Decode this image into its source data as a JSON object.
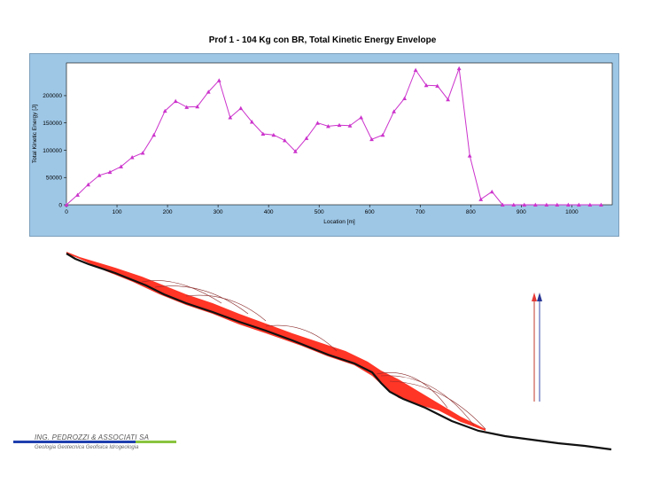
{
  "chart_data": {
    "type": "line",
    "title": "Prof  1 - 104 Kg con BR, Total Kinetic Energy Envelope",
    "xlabel": "Location [m]",
    "ylabel": "Total Kinetic Energy [J]",
    "xlim": [
      0,
      1080
    ],
    "ylim": [
      0,
      260000
    ],
    "xticks": [
      0,
      100,
      200,
      300,
      400,
      500,
      600,
      700,
      800,
      900,
      1000
    ],
    "yticks": [
      0,
      50000,
      100000,
      150000,
      200000
    ],
    "grid": false,
    "legend": "none",
    "series": [
      {
        "color": "#cc33cc",
        "x": [
          0,
          22,
          43,
          65,
          86,
          108,
          130,
          151,
          173,
          195,
          216,
          238,
          259,
          281,
          302,
          324,
          345,
          367,
          389,
          410,
          432,
          453,
          475,
          497,
          518,
          540,
          561,
          583,
          604,
          626,
          648,
          669,
          691,
          712,
          734,
          755,
          777,
          798,
          820,
          842,
          863,
          885,
          906,
          928,
          950,
          971,
          993,
          1014,
          1036,
          1058
        ],
        "y": [
          0,
          18000,
          37000,
          54000,
          60000,
          70000,
          87000,
          95000,
          128000,
          172000,
          190000,
          179000,
          180000,
          207000,
          228000,
          160000,
          177000,
          152000,
          130000,
          128000,
          118000,
          98000,
          122000,
          150000,
          144000,
          146000,
          145000,
          160000,
          120000,
          128000,
          171000,
          195000,
          247000,
          219000,
          218000,
          193000,
          250000,
          90000,
          10000,
          24000,
          0,
          0,
          0,
          0,
          0,
          0,
          0,
          0,
          0,
          0
        ]
      }
    ]
  },
  "logo": {
    "name": "ING. PEDROZZI & ASSOCIATI SA",
    "subtitle": "Geologia  Geotecnica  Geofisica  Idrogeologia"
  },
  "colors": {
    "panel_background": "#9ec7e6",
    "series_line": "#cc33cc",
    "trajectories": "#ff2a1a",
    "terrain": "#111111"
  }
}
